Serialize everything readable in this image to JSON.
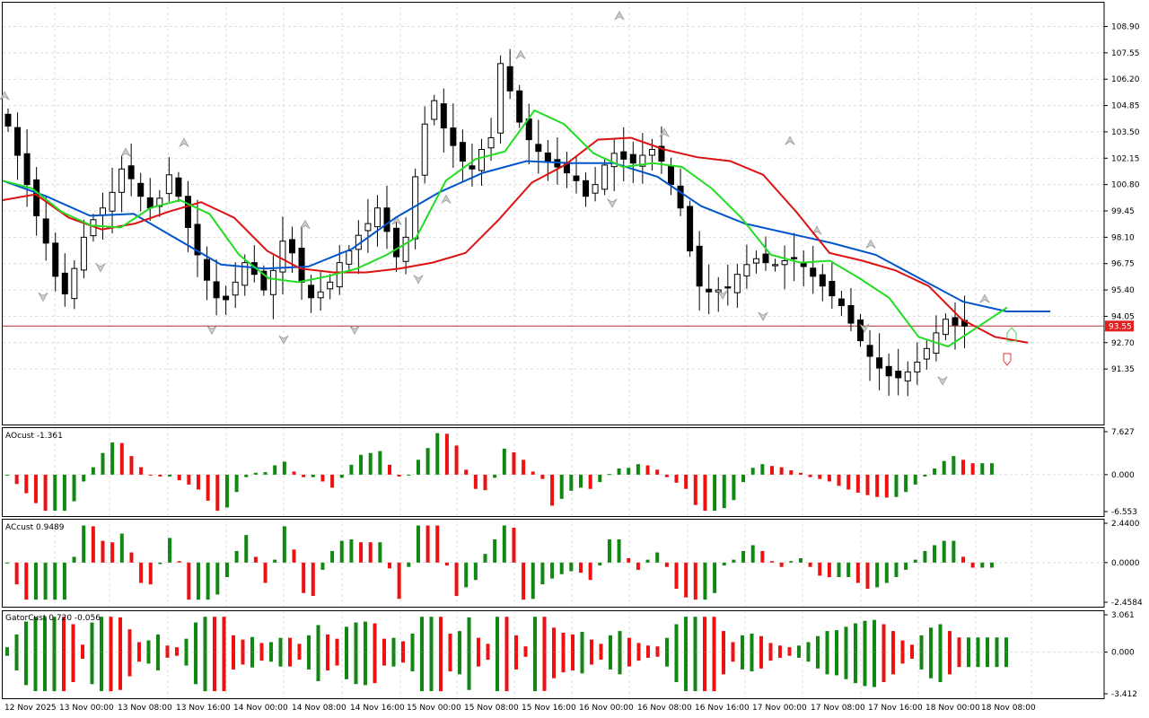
{
  "chart_data": [
    {
      "type": "candlestick",
      "panel": "main",
      "current_price": 93.55,
      "current_price_label": "93.55",
      "y_ticks": [
        "108.90",
        "107.55",
        "106.20",
        "104.85",
        "103.50",
        "102.15",
        "100.80",
        "99.45",
        "98.10",
        "96.75",
        "95.40",
        "94.05",
        "92.70",
        "91.35"
      ],
      "ylim": [
        90.0,
        110.0
      ],
      "x_labels": [
        "12 Nov 2025",
        "13 Nov 00:00",
        "13 Nov 08:00",
        "13 Nov 16:00",
        "14 Nov 00:00",
        "14 Nov 08:00",
        "14 Nov 16:00",
        "15 Nov 00:00",
        "15 Nov 08:00",
        "15 Nov 16:00",
        "16 Nov 00:00",
        "16 Nov 08:00",
        "16 Nov 16:00",
        "17 Nov 00:00",
        "17 Nov 08:00",
        "17 Nov 16:00",
        "18 Nov 00:00",
        "18 Nov 08:00"
      ],
      "close_path": [
        103.8,
        102.3,
        100.8,
        99.2,
        97.8,
        96.1,
        95.2,
        96.5,
        98.1,
        99.0,
        99.6,
        100.4,
        101.6,
        101.1,
        100.2,
        99.6,
        100.1,
        101.3,
        100.2,
        98.6,
        97.2,
        95.9,
        95.0,
        94.9,
        95.8,
        96.8,
        96.2,
        95.4,
        96.4,
        97.9,
        97.3,
        95.8,
        95.0,
        95.3,
        95.8,
        96.8,
        97.4,
        98.2,
        98.8,
        99.6,
        98.4,
        97.1,
        98.1,
        101.2,
        103.9,
        105.1,
        103.7,
        102.8,
        102.0,
        101.6,
        102.6,
        103.2,
        107.0,
        105.6,
        104.0,
        103.1,
        102.5,
        102.0,
        101.7,
        101.4,
        101.0,
        100.2,
        100.8,
        101.8,
        102.4,
        102.1,
        101.9,
        102.3,
        102.6,
        102.0,
        100.8,
        99.6,
        97.4,
        95.6,
        95.3,
        95.4,
        95.5,
        96.2,
        96.7,
        97.0,
        96.8,
        96.7,
        96.9,
        97.0,
        96.6,
        96.1,
        95.6,
        95.1,
        94.6,
        93.7,
        92.8,
        92.0,
        91.4,
        91.0,
        90.9,
        91.2,
        91.7,
        92.4,
        93.2,
        93.9,
        93.6,
        93.55
      ],
      "up_fractals": [
        105.2,
        102.3,
        102.8,
        98.6,
        98.8,
        99.9,
        107.3,
        109.3,
        103.3,
        102.9,
        98.3,
        97.6,
        94.8
      ],
      "down_fractals": [
        95.2,
        96.7,
        93.5,
        93.0,
        93.5,
        96.1,
        100.0,
        95.3,
        94.2,
        93.6,
        90.9
      ],
      "alligator": {
        "lips_color": "#22dd22",
        "teeth_color": "#dd1111",
        "jaw_color": "#0055cc",
        "lips": [
          101.0,
          100.6,
          99.4,
          98.7,
          98.6,
          99.6,
          100.0,
          99.3,
          97.2,
          96.0,
          95.8,
          96.1,
          96.5,
          97.2,
          98.1,
          101.0,
          102.1,
          102.5,
          104.6,
          103.9,
          102.4,
          101.7,
          101.9,
          101.7,
          100.6,
          99.1,
          97.2,
          96.8,
          96.9,
          96.0,
          95.0,
          93.0,
          92.5,
          93.5,
          94.5
        ],
        "teeth": [
          100.0,
          100.3,
          99.1,
          98.5,
          98.8,
          99.4,
          99.9,
          99.1,
          97.4,
          96.5,
          96.3,
          96.3,
          96.5,
          96.8,
          97.3,
          99.0,
          100.9,
          101.8,
          103.1,
          103.2,
          102.6,
          102.2,
          102.0,
          101.3,
          99.4,
          97.3,
          96.9,
          96.4,
          95.6,
          93.9,
          93.0,
          92.7
        ],
        "jaw": [
          101.0,
          100.2,
          99.2,
          99.3,
          98.0,
          96.7,
          96.5,
          96.6,
          97.5,
          99.1,
          100.4,
          101.4,
          102.0,
          101.9,
          101.9,
          101.2,
          99.7,
          98.8,
          98.3,
          97.8,
          97.2,
          96.0,
          94.8,
          94.3,
          94.3
        ]
      }
    },
    {
      "type": "histogram",
      "panel": "AOcust",
      "label": "AOcust -1.361",
      "y_ticks": [
        "7.627",
        "0.000",
        "-6.553"
      ],
      "ylim": [
        -6.553,
        7.627
      ],
      "colors": {
        "up": "#118811",
        "down": "#ee1111"
      }
    },
    {
      "type": "histogram",
      "panel": "ACcust",
      "label": "ACcust 0.9489",
      "y_ticks": [
        "2.4400",
        "0.0000",
        "-2.4584"
      ],
      "ylim": [
        -2.4584,
        2.44
      ],
      "colors": {
        "up": "#118811",
        "down": "#ee1111"
      }
    },
    {
      "type": "histogram",
      "panel": "GatorCust",
      "label": "GatorCust 0.720 -0.056",
      "y_ticks": [
        "3.061",
        "0.000",
        "-3.412"
      ],
      "ylim": [
        -3.412,
        3.061
      ],
      "colors": {
        "up": "#118811",
        "down": "#ee1111"
      }
    }
  ]
}
